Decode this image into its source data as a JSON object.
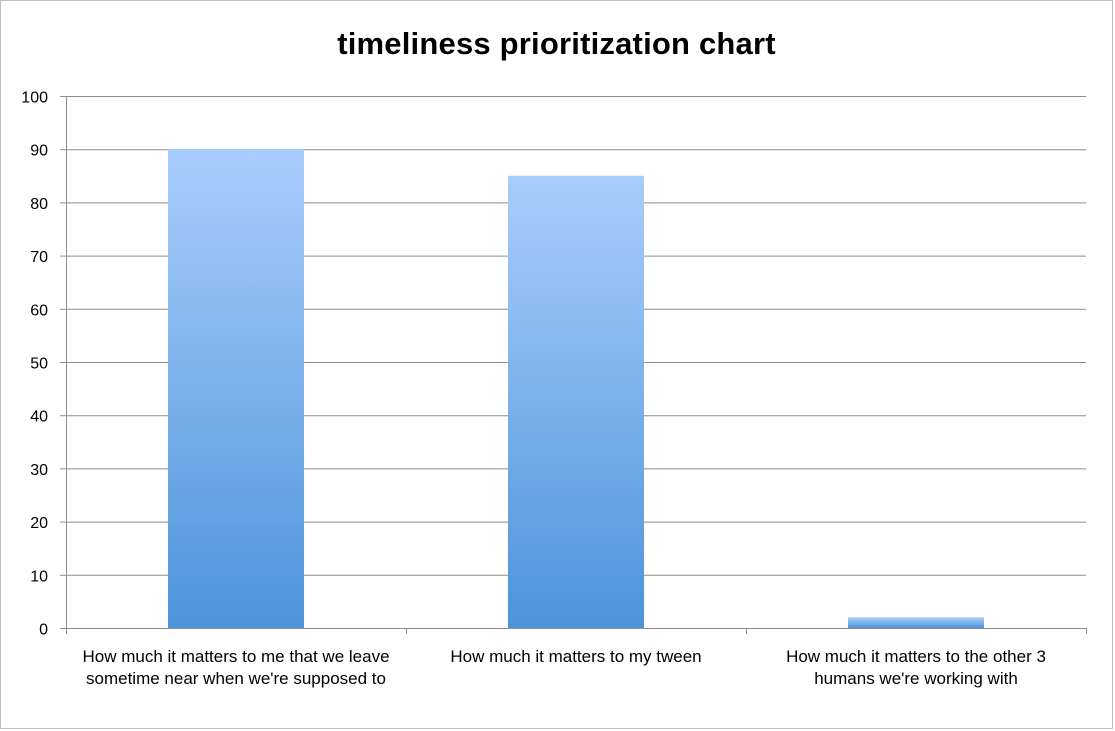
{
  "chart_data": {
    "type": "bar",
    "title": "timeliness prioritization chart",
    "categories": [
      "How much it matters to me that we leave sometime near when we're supposed to",
      "How much it matters to my tween",
      "How much it matters to the other 3 humans we're working with"
    ],
    "values": [
      90,
      85,
      2
    ],
    "xlabel": "",
    "ylabel": "",
    "ylim": [
      0,
      100
    ],
    "yticks": [
      0,
      10,
      20,
      30,
      40,
      50,
      60,
      70,
      80,
      90,
      100
    ],
    "grid": true,
    "legend": "none",
    "colors": {
      "bar_top": "#a9cdfc",
      "bar_bottom": "#4d94da",
      "grid": "#8e8e8e",
      "axis": "#8e8e8e"
    }
  }
}
